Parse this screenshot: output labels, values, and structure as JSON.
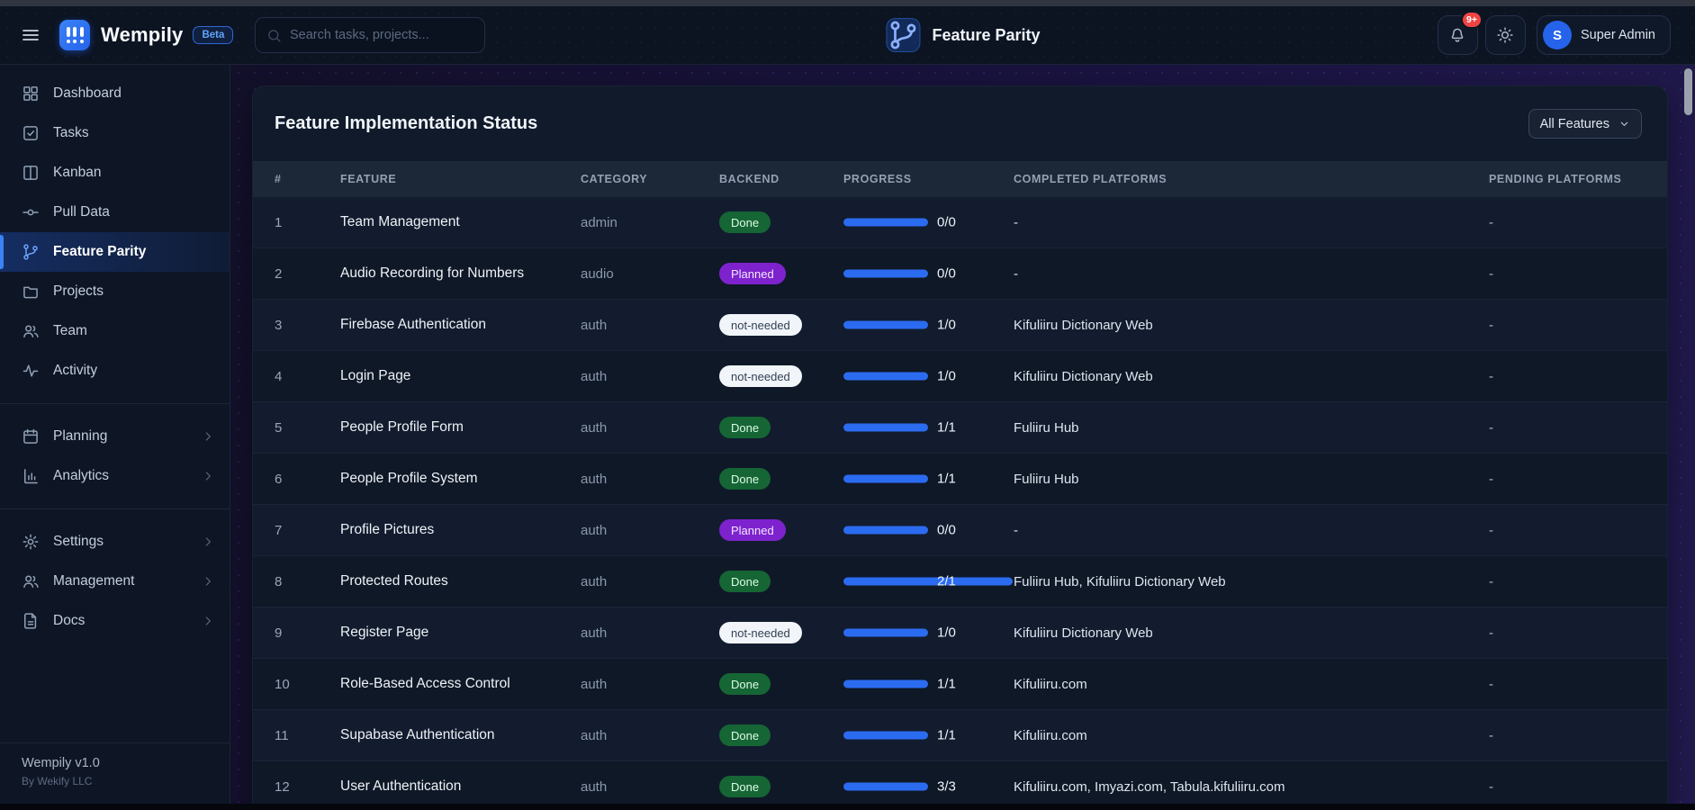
{
  "topbar": {
    "app_name": "Wempily",
    "beta_label": "Beta",
    "search_placeholder": "Search tasks, projects...",
    "page_title": "Feature Parity",
    "notification_count": "9+",
    "user": {
      "initial": "S",
      "name": "Super Admin"
    }
  },
  "sidebar": {
    "items": [
      {
        "label": "Dashboard",
        "icon": "dashboard"
      },
      {
        "label": "Tasks",
        "icon": "tasks"
      },
      {
        "label": "Kanban",
        "icon": "kanban"
      },
      {
        "label": "Pull Data",
        "icon": "git-commit"
      },
      {
        "label": "Feature Parity",
        "icon": "git-branch",
        "active": true
      },
      {
        "label": "Projects",
        "icon": "folder"
      },
      {
        "label": "Team",
        "icon": "users"
      },
      {
        "label": "Activity",
        "icon": "activity"
      },
      {
        "type": "divider"
      },
      {
        "label": "Planning",
        "icon": "calendar",
        "chevron": true
      },
      {
        "label": "Analytics",
        "icon": "bar-chart",
        "chevron": true
      },
      {
        "type": "divider"
      },
      {
        "label": "Settings",
        "icon": "gear",
        "chevron": true
      },
      {
        "label": "Management",
        "icon": "users",
        "chevron": true
      },
      {
        "label": "Docs",
        "icon": "document",
        "chevron": true
      }
    ],
    "footer": {
      "version": "Wempily v1.0",
      "company": "By Wekify LLC"
    }
  },
  "main": {
    "card_title": "Feature Implementation Status",
    "filter_value": "All Features",
    "table": {
      "columns": [
        "#",
        "FEATURE",
        "CATEGORY",
        "BACKEND",
        "PROGRESS",
        "COMPLETED PLATFORMS",
        "PENDING PLATFORMS"
      ],
      "rows": [
        {
          "num": "1",
          "feature": "Team Management",
          "category": "admin",
          "backend_status": "Done",
          "status_type": "done",
          "progress_ratio": "0/0",
          "progress_percent": 100,
          "completed": "-",
          "pending": "-"
        },
        {
          "num": "2",
          "feature": "Audio Recording for Numbers",
          "category": "audio",
          "backend_status": "Planned",
          "status_type": "planned",
          "progress_ratio": "0/0",
          "progress_percent": 100,
          "completed": "-",
          "pending": "-"
        },
        {
          "num": "3",
          "feature": "Firebase Authentication",
          "category": "auth",
          "backend_status": "not-needed",
          "status_type": "not-needed",
          "progress_ratio": "1/0",
          "progress_percent": 100,
          "completed": "Kifuliiru Dictionary Web",
          "pending": "-"
        },
        {
          "num": "4",
          "feature": "Login Page",
          "category": "auth",
          "backend_status": "not-needed",
          "status_type": "not-needed",
          "progress_ratio": "1/0",
          "progress_percent": 100,
          "completed": "Kifuliiru Dictionary Web",
          "pending": "-"
        },
        {
          "num": "5",
          "feature": "People Profile Form",
          "category": "auth",
          "backend_status": "Done",
          "status_type": "done",
          "progress_ratio": "1/1",
          "progress_percent": 100,
          "completed": "Fuliiru Hub",
          "pending": "-"
        },
        {
          "num": "6",
          "feature": "People Profile System",
          "category": "auth",
          "backend_status": "Done",
          "status_type": "done",
          "progress_ratio": "1/1",
          "progress_percent": 100,
          "completed": "Fuliiru Hub",
          "pending": "-"
        },
        {
          "num": "7",
          "feature": "Profile Pictures",
          "category": "auth",
          "backend_status": "Planned",
          "status_type": "planned",
          "progress_ratio": "0/0",
          "progress_percent": 100,
          "completed": "-",
          "pending": "-"
        },
        {
          "num": "8",
          "feature": "Protected Routes",
          "category": "auth",
          "backend_status": "Done",
          "status_type": "done",
          "progress_ratio": "2/1",
          "progress_percent": 200,
          "completed": "Fuliiru Hub, Kifuliiru Dictionary Web",
          "pending": "-"
        },
        {
          "num": "9",
          "feature": "Register Page",
          "category": "auth",
          "backend_status": "not-needed",
          "status_type": "not-needed",
          "progress_ratio": "1/0",
          "progress_percent": 100,
          "completed": "Kifuliiru Dictionary Web",
          "pending": "-"
        },
        {
          "num": "10",
          "feature": "Role-Based Access Control",
          "category": "auth",
          "backend_status": "Done",
          "status_type": "done",
          "progress_ratio": "1/1",
          "progress_percent": 100,
          "completed": "Kifuliiru.com",
          "pending": "-"
        },
        {
          "num": "11",
          "feature": "Supabase Authentication",
          "category": "auth",
          "backend_status": "Done",
          "status_type": "done",
          "progress_ratio": "1/1",
          "progress_percent": 100,
          "completed": "Kifuliiru.com",
          "pending": "-"
        },
        {
          "num": "12",
          "feature": "User Authentication",
          "category": "auth",
          "backend_status": "Done",
          "status_type": "done",
          "progress_ratio": "3/3",
          "progress_percent": 100,
          "completed": "Kifuliiru.com, Imyazi.com, Tabula.kifuliiru.com",
          "pending": "-"
        }
      ]
    }
  },
  "colors": {
    "accent": "#2563eb",
    "progress_bar": "#2b6bf0",
    "notification": "#ef4444",
    "badges": {
      "done": {
        "bg": "#166534",
        "text": "#dcfce7"
      },
      "planned": {
        "bg": "#7e22ce",
        "text": "#f3e8ff"
      },
      "not-needed": {
        "bg": "#f1f5f9",
        "text": "#334155"
      }
    }
  }
}
